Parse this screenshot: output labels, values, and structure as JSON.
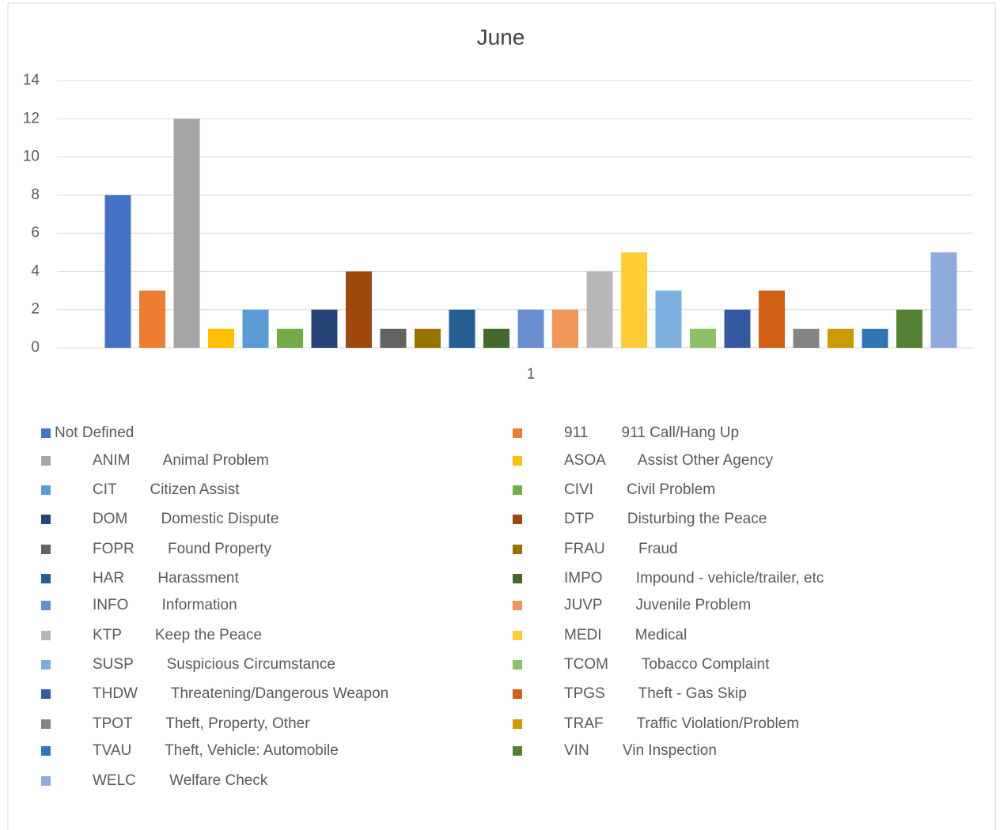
{
  "chart_data": {
    "type": "bar",
    "title": "June",
    "categories": [
      "1"
    ],
    "ylim": [
      0,
      14
    ],
    "yticks": [
      0,
      2,
      4,
      6,
      8,
      10,
      12,
      14
    ],
    "grid": true,
    "legend": "bottom",
    "series": [
      {
        "name": "Not Defined",
        "color": "#4472c4",
        "values": [
          8
        ]
      },
      {
        "name": "911        911 Call/Hang Up",
        "color": "#ed7d31",
        "values": [
          3
        ]
      },
      {
        "name": "ANIM        Animal Problem",
        "color": "#a5a5a5",
        "values": [
          12
        ]
      },
      {
        "name": "ASOA        Assist Other Agency",
        "color": "#ffc000",
        "values": [
          1
        ]
      },
      {
        "name": "CIT        Citizen Assist",
        "color": "#5b9bd5",
        "values": [
          2
        ]
      },
      {
        "name": "CIVI        Civil Problem",
        "color": "#70ad47",
        "values": [
          1
        ]
      },
      {
        "name": "DOM        Domestic Dispute",
        "color": "#264478",
        "values": [
          2
        ]
      },
      {
        "name": "DTP        Disturbing the Peace",
        "color": "#9e480e",
        "values": [
          4
        ]
      },
      {
        "name": "FOPR        Found Property",
        "color": "#636363",
        "values": [
          1
        ]
      },
      {
        "name": "FRAU        Fraud",
        "color": "#997300",
        "values": [
          1
        ]
      },
      {
        "name": "HAR        Harassment",
        "color": "#255e91",
        "values": [
          2
        ]
      },
      {
        "name": "IMPO        Impound - vehicle/trailer, etc",
        "color": "#43682b",
        "values": [
          1
        ]
      },
      {
        "name": "INFO        Information",
        "color": "#698ed0",
        "values": [
          2
        ]
      },
      {
        "name": "JUVP        Juvenile Problem",
        "color": "#f1975a",
        "values": [
          2
        ]
      },
      {
        "name": "KTP        Keep the Peace",
        "color": "#b7b7b7",
        "values": [
          4
        ]
      },
      {
        "name": "MEDI        Medical",
        "color": "#ffcd33",
        "values": [
          5
        ]
      },
      {
        "name": "SUSP        Suspicious Circumstance",
        "color": "#7cafdd",
        "values": [
          3
        ]
      },
      {
        "name": "TCOM        Tobacco Complaint",
        "color": "#8cc168",
        "values": [
          1
        ]
      },
      {
        "name": "THDW        Threatening/Dangerous Weapon",
        "color": "#335aa1",
        "values": [
          2
        ]
      },
      {
        "name": "TPGS        Theft - Gas Skip",
        "color": "#d26012",
        "values": [
          3
        ]
      },
      {
        "name": "TPOT        Theft, Property, Other",
        "color": "#848484",
        "values": [
          1
        ]
      },
      {
        "name": "TRAF        Traffic Violation/Problem",
        "color": "#cc9a00",
        "values": [
          1
        ]
      },
      {
        "name": "TVAU        Theft, Vehicle: Automobile",
        "color": "#2e75b6",
        "values": [
          1
        ]
      },
      {
        "name": "VIN        Vin Inspection",
        "color": "#548235",
        "values": [
          2
        ]
      },
      {
        "name": "WELC        Welfare Check",
        "color": "#8faadc",
        "values": [
          5
        ]
      }
    ]
  }
}
